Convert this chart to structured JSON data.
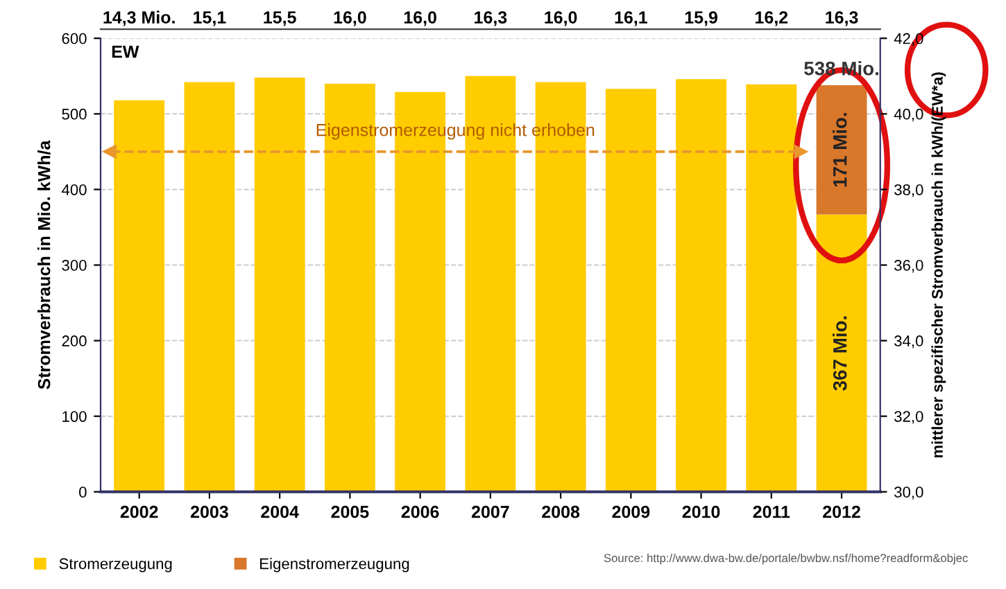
{
  "chart_data": {
    "type": "bar",
    "stacked": true,
    "categories": [
      "2002",
      "2003",
      "2004",
      "2005",
      "2006",
      "2007",
      "2008",
      "2009",
      "2010",
      "2011",
      "2012"
    ],
    "series": [
      {
        "name": "Stromerzeugung",
        "color": "#ffcc00",
        "values": [
          518,
          542,
          548,
          540,
          529,
          550,
          542,
          533,
          546,
          539,
          367
        ],
        "value_labels": [
          null,
          null,
          null,
          null,
          null,
          null,
          null,
          null,
          null,
          null,
          "367 Mio."
        ]
      },
      {
        "name": "Eigenstromerzeugung",
        "color": "#d9772b",
        "values": [
          null,
          null,
          null,
          null,
          null,
          null,
          null,
          null,
          null,
          null,
          171
        ],
        "value_labels": [
          null,
          null,
          null,
          null,
          null,
          null,
          null,
          null,
          null,
          null,
          "171 Mio."
        ]
      }
    ],
    "totals": [
      null,
      null,
      null,
      null,
      null,
      null,
      null,
      null,
      null,
      null,
      "538 Mio."
    ],
    "ylabel": "Stromverbrauch in Mio. kWh/a",
    "y2label": "mittlerer spezifischer Stromverbrauch in kWh/(EW*a)",
    "ylim": [
      0,
      600
    ],
    "yticks": [
      0,
      100,
      200,
      300,
      400,
      500,
      600
    ],
    "y2lim": [
      30,
      42
    ],
    "y2ticks": [
      {
        "value": 30,
        "label": "30,0"
      },
      {
        "value": 32,
        "label": "32,0"
      },
      {
        "value": 34,
        "label": "34,0"
      },
      {
        "value": 36,
        "label": "36,0"
      },
      {
        "value": 38,
        "label": "38,0"
      },
      {
        "value": 40,
        "label": "40,0"
      },
      {
        "value": 42,
        "label": "42,0"
      }
    ],
    "grid": "y",
    "legend": "bottom left",
    "ref_lines": [
      {
        "axis": "y",
        "value": 450,
        "label": "Eigenstromerzeugung nicht erhoben",
        "color": "#e8962e",
        "line_style": "dashed"
      }
    ],
    "annotations": [
      "14,3 Mio.",
      "15,1",
      "15,5",
      "16,0",
      "16,0",
      "16,3",
      "16,0",
      "16,1",
      "15,9",
      "16,2",
      "16,3",
      "EW",
      "Source: http://www.dwa-bw.de/portale/bwbw.nsf/home?readform&objec"
    ]
  }
}
